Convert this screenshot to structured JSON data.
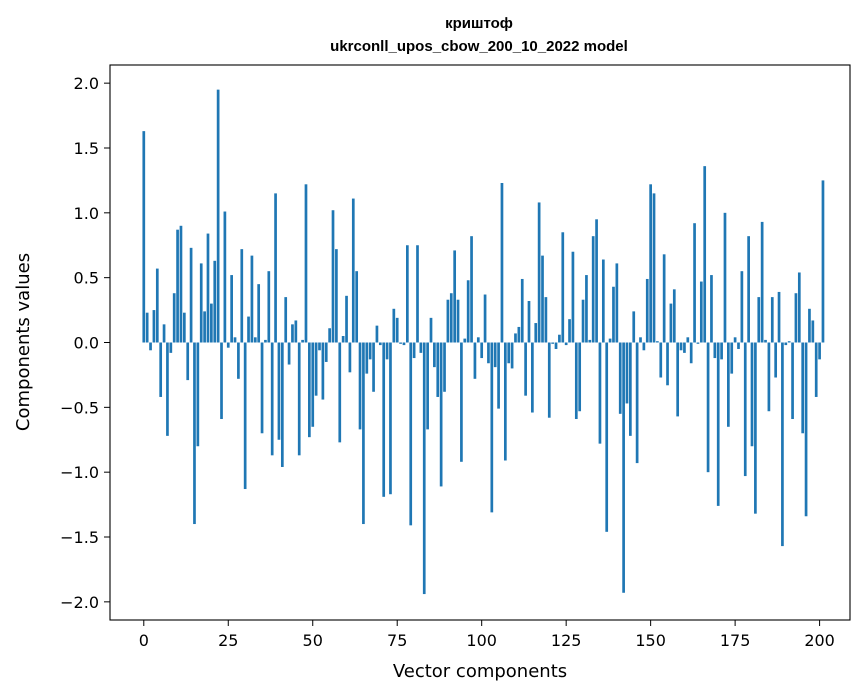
{
  "chart_data": {
    "type": "bar",
    "title": "криштоф",
    "subtitle": "ukrconll_upos_cbow_200_10_2022 model",
    "xlabel": "Vector components",
    "ylabel": "Components values",
    "xlim": [
      -10,
      209
    ],
    "ylim": [
      -2.14,
      2.14
    ],
    "xticks": [
      0,
      25,
      50,
      75,
      100,
      125,
      150,
      175,
      200
    ],
    "yticks": [
      2.0,
      1.5,
      1.0,
      0.5,
      0.0,
      -0.5,
      -1.0,
      -1.5,
      -2.0
    ],
    "ytick_labels": [
      "2.0",
      "1.5",
      "1.0",
      "0.5",
      "0.0",
      "−0.5",
      "−1.0",
      "−1.5",
      "−2.0"
    ],
    "bar_color": "#1f77b4",
    "values": [
      1.63,
      0.23,
      -0.06,
      0.25,
      0.57,
      -0.42,
      0.14,
      -0.72,
      -0.08,
      0.38,
      0.87,
      0.9,
      0.23,
      -0.29,
      0.73,
      -1.4,
      -0.8,
      0.61,
      0.24,
      0.84,
      0.3,
      0.63,
      1.95,
      -0.59,
      1.01,
      -0.04,
      0.52,
      0.04,
      -0.28,
      0.72,
      -1.13,
      0.2,
      0.67,
      0.04,
      0.45,
      -0.7,
      0.02,
      0.55,
      -0.87,
      1.15,
      -0.75,
      -0.96,
      0.35,
      -0.17,
      0.14,
      0.17,
      -0.87,
      0.02,
      1.22,
      -0.73,
      -0.65,
      -0.41,
      -0.06,
      -0.44,
      -0.15,
      0.11,
      1.02,
      0.72,
      -0.77,
      0.05,
      0.36,
      -0.23,
      1.11,
      0.55,
      -0.67,
      -1.4,
      -0.24,
      -0.13,
      -0.38,
      0.13,
      -0.02,
      -1.19,
      -0.13,
      -1.17,
      0.26,
      0.19,
      -0.01,
      -0.02,
      0.75,
      -1.41,
      -0.12,
      0.75,
      -0.08,
      -1.94,
      -0.67,
      0.19,
      -0.19,
      -0.42,
      -1.11,
      -0.38,
      0.33,
      0.38,
      0.71,
      0.33,
      -0.92,
      0.03,
      0.48,
      0.82,
      -0.28,
      0.04,
      -0.12,
      0.37,
      -0.16,
      -1.31,
      -0.19,
      -0.51,
      1.23,
      -0.91,
      -0.16,
      -0.2,
      0.07,
      0.12,
      0.49,
      -0.41,
      0.32,
      -0.54,
      0.15,
      1.08,
      0.67,
      0.35,
      -0.58,
      -0.01,
      -0.05,
      0.06,
      0.85,
      -0.02,
      0.18,
      0.7,
      -0.59,
      -0.53,
      0.33,
      0.52,
      0.02,
      0.82,
      0.95,
      -0.78,
      0.64,
      -1.46,
      0.03,
      0.43,
      0.61,
      -0.55,
      -1.93,
      -0.47,
      -0.72,
      0.24,
      -0.93,
      0.04,
      -0.06,
      0.49,
      1.22,
      1.15,
      0.01,
      -0.27,
      0.68,
      -0.33,
      0.3,
      0.41,
      -0.57,
      -0.06,
      -0.08,
      0.04,
      -0.16,
      0.92,
      -0.01,
      0.47,
      1.36,
      -1.0,
      0.52,
      -0.12,
      -1.26,
      -0.13,
      1.0,
      -0.65,
      -0.24,
      0.04,
      -0.05,
      0.55,
      -1.03,
      0.82,
      -0.8,
      -1.32,
      0.35,
      0.93,
      0.02,
      -0.53,
      0.35,
      -0.27,
      0.39,
      -1.57,
      -0.02,
      0.01,
      -0.59,
      0.38,
      0.54,
      -0.7,
      -1.34,
      0.26,
      0.17,
      -0.42,
      -0.13,
      1.25
    ]
  }
}
